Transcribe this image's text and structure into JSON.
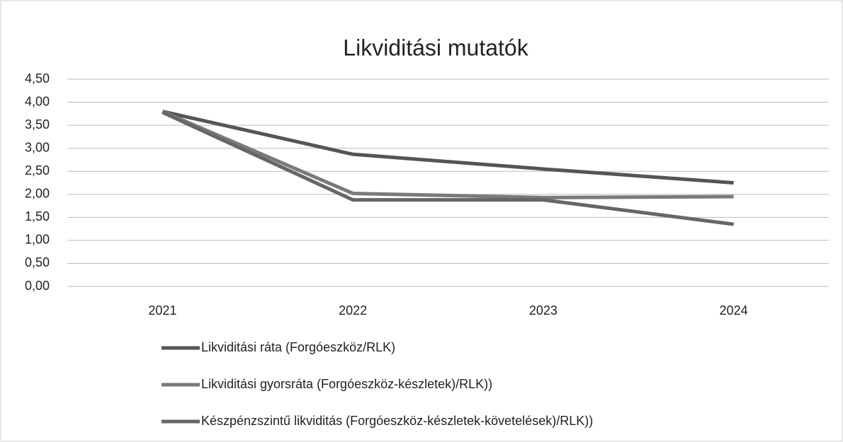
{
  "chart_data": {
    "type": "line",
    "title": "Likviditási mutatók",
    "categories": [
      "2021",
      "2022",
      "2023",
      "2024"
    ],
    "series": [
      {
        "name": "Likviditási ráta (Forgóeszköz/RLK)",
        "color": "#555555",
        "values": [
          3.8,
          2.87,
          2.55,
          2.25
        ]
      },
      {
        "name": "Likviditási gyorsráta (Forgóeszköz-készletek)/RLK))",
        "color": "#7a7a7a",
        "values": [
          3.8,
          2.02,
          1.93,
          1.95
        ]
      },
      {
        "name": "Készpénzszintű likviditás  (Forgóeszköz-készletek-követelések)/RLK))",
        "color": "#666666",
        "values": [
          3.78,
          1.88,
          1.88,
          1.35
        ]
      }
    ],
    "ylim": [
      0,
      4.5
    ],
    "yticks": [
      {
        "value": 0,
        "label": "0,00"
      },
      {
        "value": 0.5,
        "label": "0,50"
      },
      {
        "value": 1,
        "label": "1,00"
      },
      {
        "value": 1.5,
        "label": "1,50"
      },
      {
        "value": 2,
        "label": "2,00"
      },
      {
        "value": 2.5,
        "label": "2,50"
      },
      {
        "value": 3,
        "label": "3,00"
      },
      {
        "value": 3.5,
        "label": "3,50"
      },
      {
        "value": 4,
        "label": "4,00"
      },
      {
        "value": 4.5,
        "label": "4,50"
      }
    ],
    "grid": true
  }
}
